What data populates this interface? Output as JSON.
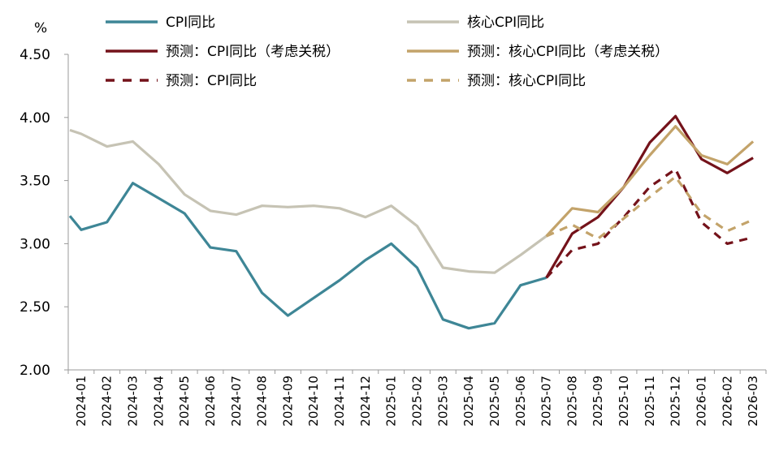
{
  "chart_data": {
    "type": "line",
    "title": "",
    "xlabel": "",
    "ylabel": "%",
    "ylim": [
      2.0,
      4.5
    ],
    "yticks": [
      "2.00",
      "2.50",
      "3.00",
      "3.50",
      "4.00",
      "4.50"
    ],
    "grid": false,
    "legend_position": "top",
    "categories": [
      "2024-01",
      "2024-02",
      "2024-03",
      "2024-04",
      "2024-05",
      "2024-06",
      "2024-07",
      "2024-08",
      "2024-09",
      "2024-10",
      "2024-11",
      "2024-12",
      "2025-01",
      "2025-02",
      "2025-03",
      "2025-04",
      "2025-05",
      "2025-06",
      "2025-07",
      "2025-08",
      "2025-09",
      "2025-10",
      "2025-11",
      "2025-12",
      "2026-01",
      "2026-02",
      "2026-03"
    ],
    "series": [
      {
        "name": "CPI同比",
        "color": "#3e8696",
        "dash": "solid",
        "points": [
          [
            "2024-01",
            3.22
          ],
          [
            "2024-01",
            3.11
          ],
          [
            "2024-02",
            3.17
          ],
          [
            "2024-03",
            3.48
          ],
          [
            "2024-04",
            3.36
          ],
          [
            "2024-05",
            3.24
          ],
          [
            "2024-06",
            2.97
          ],
          [
            "2024-07",
            2.94
          ],
          [
            "2024-08",
            2.61
          ],
          [
            "2024-09",
            2.43
          ],
          [
            "2024-10",
            2.57
          ],
          [
            "2024-11",
            2.71
          ],
          [
            "2024-12",
            2.87
          ],
          [
            "2025-01",
            3.0
          ],
          [
            "2025-02",
            2.81
          ],
          [
            "2025-03",
            2.4
          ],
          [
            "2025-04",
            2.33
          ],
          [
            "2025-05",
            2.37
          ],
          [
            "2025-06",
            2.67
          ],
          [
            "2025-07",
            2.73
          ]
        ]
      },
      {
        "name": "核心CPI同比",
        "color": "#c6c3b4",
        "dash": "solid",
        "points": [
          [
            "2024-01",
            3.9
          ],
          [
            "2024-01",
            3.87
          ],
          [
            "2024-02",
            3.77
          ],
          [
            "2024-03",
            3.81
          ],
          [
            "2024-04",
            3.63
          ],
          [
            "2024-05",
            3.39
          ],
          [
            "2024-06",
            3.26
          ],
          [
            "2024-07",
            3.23
          ],
          [
            "2024-08",
            3.3
          ],
          [
            "2024-09",
            3.29
          ],
          [
            "2024-10",
            3.3
          ],
          [
            "2024-11",
            3.28
          ],
          [
            "2024-12",
            3.21
          ],
          [
            "2025-01",
            3.3
          ],
          [
            "2025-02",
            3.14
          ],
          [
            "2025-03",
            2.81
          ],
          [
            "2025-04",
            2.78
          ],
          [
            "2025-05",
            2.77
          ],
          [
            "2025-06",
            2.91
          ],
          [
            "2025-07",
            3.06
          ]
        ]
      },
      {
        "name": "预测：CPI同比（考虑关税）",
        "color": "#74121a",
        "dash": "solid",
        "points": [
          [
            "2025-07",
            2.73
          ],
          [
            "2025-08",
            3.08
          ],
          [
            "2025-09",
            3.21
          ],
          [
            "2025-10",
            3.45
          ],
          [
            "2025-11",
            3.8
          ],
          [
            "2025-12",
            4.01
          ],
          [
            "2026-01",
            3.67
          ],
          [
            "2026-02",
            3.56
          ],
          [
            "2026-03",
            3.68
          ]
        ]
      },
      {
        "name": "预测：核心CPI同比（考虑关税）",
        "color": "#c3a36a",
        "dash": "solid",
        "points": [
          [
            "2025-07",
            3.06
          ],
          [
            "2025-08",
            3.28
          ],
          [
            "2025-09",
            3.25
          ],
          [
            "2025-10",
            3.45
          ],
          [
            "2025-11",
            3.7
          ],
          [
            "2025-12",
            3.93
          ],
          [
            "2026-01",
            3.7
          ],
          [
            "2026-02",
            3.63
          ],
          [
            "2026-03",
            3.81
          ]
        ]
      },
      {
        "name": "预测：CPI同比",
        "color": "#74121a",
        "dash": "dashed",
        "points": [
          [
            "2025-07",
            2.73
          ],
          [
            "2025-08",
            2.95
          ],
          [
            "2025-09",
            3.0
          ],
          [
            "2025-10",
            3.21
          ],
          [
            "2025-11",
            3.45
          ],
          [
            "2025-12",
            3.59
          ],
          [
            "2026-01",
            3.17
          ],
          [
            "2026-02",
            3.0
          ],
          [
            "2026-03",
            3.05
          ]
        ]
      },
      {
        "name": "预测：核心CPI同比",
        "color": "#c3a36a",
        "dash": "dashed",
        "points": [
          [
            "2025-07",
            3.06
          ],
          [
            "2025-08",
            3.15
          ],
          [
            "2025-09",
            3.04
          ],
          [
            "2025-10",
            3.2
          ],
          [
            "2025-11",
            3.37
          ],
          [
            "2025-12",
            3.53
          ],
          [
            "2026-01",
            3.24
          ],
          [
            "2026-02",
            3.1
          ],
          [
            "2026-03",
            3.19
          ]
        ]
      }
    ]
  }
}
